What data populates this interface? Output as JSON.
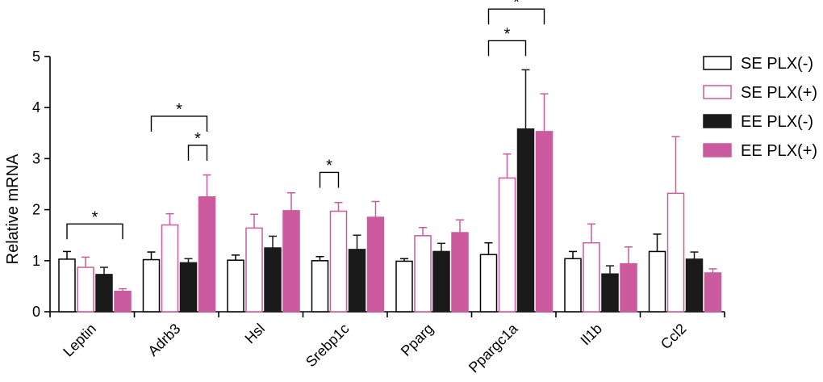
{
  "chart_data": {
    "type": "bar",
    "title": "",
    "xlabel": "",
    "ylabel": "Relative mRNA",
    "ylim": [
      0,
      5
    ],
    "yticks": [
      "0",
      "1",
      "2",
      "3",
      "4",
      "5"
    ],
    "grid": false,
    "legend_position": "top-right",
    "categories": [
      "Leptin",
      "Adrb3",
      "Hsl",
      "Srebp1c",
      "Pparg",
      "Ppargc1a",
      "Il1b",
      "Ccl2"
    ],
    "series": [
      {
        "name": "SE PLX(-)",
        "fill": "#ffffff",
        "stroke": "#000000",
        "values": [
          1.03,
          1.02,
          1.01,
          1.0,
          0.99,
          1.12,
          1.04,
          1.18
        ],
        "errors": [
          0.15,
          0.15,
          0.1,
          0.08,
          0.05,
          0.23,
          0.14,
          0.34
        ]
      },
      {
        "name": "SE PLX(+)",
        "fill": "#ffffff",
        "stroke": "#cc5a9e",
        "values": [
          0.87,
          1.7,
          1.64,
          1.97,
          1.49,
          2.62,
          1.35,
          2.32
        ],
        "errors": [
          0.2,
          0.22,
          0.27,
          0.17,
          0.16,
          0.47,
          0.37,
          1.11
        ]
      },
      {
        "name": "EE PLX(-)",
        "fill": "#1a1a1a",
        "stroke": "#1a1a1a",
        "values": [
          0.73,
          0.96,
          1.25,
          1.22,
          1.18,
          3.58,
          0.74,
          1.03
        ],
        "errors": [
          0.14,
          0.08,
          0.23,
          0.28,
          0.16,
          1.16,
          0.16,
          0.14
        ]
      },
      {
        "name": "EE PLX(+)",
        "fill": "#cc5a9e",
        "stroke": "#cc5a9e",
        "values": [
          0.4,
          2.25,
          1.98,
          1.85,
          1.55,
          3.53,
          0.94,
          0.76
        ],
        "errors": [
          0.05,
          0.43,
          0.35,
          0.31,
          0.25,
          0.74,
          0.33,
          0.08
        ]
      }
    ],
    "significance": [
      {
        "category": 0,
        "from_series": 0,
        "to_series": 3,
        "level": 1.72,
        "label": "*"
      },
      {
        "category": 1,
        "from_series": 0,
        "to_series": 3,
        "level": 3.83,
        "label": "*"
      },
      {
        "category": 1,
        "from_series": 2,
        "to_series": 3,
        "level": 3.26,
        "label": "*"
      },
      {
        "category": 3,
        "from_series": 0,
        "to_series": 1,
        "level": 2.73,
        "label": "*"
      },
      {
        "category": 5,
        "from_series": 0,
        "to_series": 2,
        "level": 5.31,
        "label": "*"
      },
      {
        "category": 5,
        "from_series": 0,
        "to_series": 3,
        "level": 5.93,
        "label": "*"
      }
    ]
  }
}
